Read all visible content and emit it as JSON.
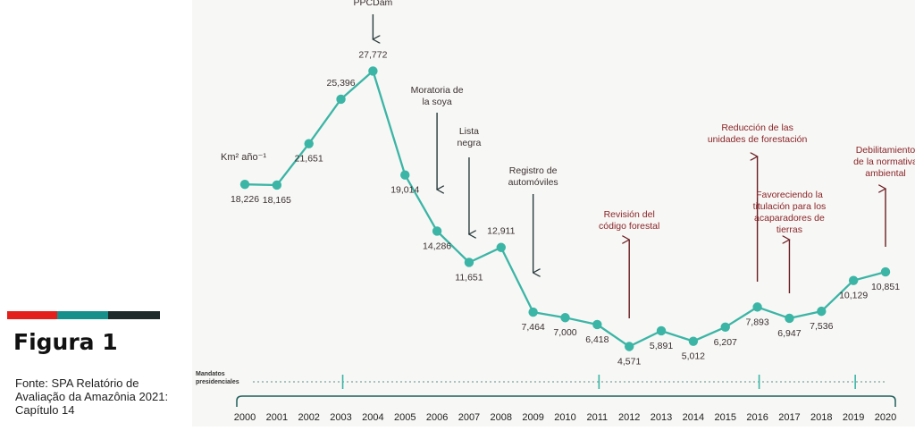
{
  "figure": {
    "title": "Figura 1",
    "source": "Fonte: SPA Relatório de Avaliação da Amazônia 2021: Capítulo 14",
    "stripe_colors": [
      "#e3201b",
      "#17908c",
      "#1f2a2b"
    ]
  },
  "colors": {
    "line": "#3bb5a6",
    "black_arrow": "#2a3a3c",
    "red_arrow": "#6b1e22",
    "red_text": "#8b2428",
    "label_text": "#3a3030",
    "axis": "#1f5f5b"
  },
  "chart_data": {
    "type": "line",
    "unit_label": "Km² año⁻¹",
    "x": [
      "2000",
      "2001",
      "2002",
      "2003",
      "2004",
      "2005",
      "2006",
      "2007",
      "2008",
      "2009",
      "2010",
      "2011",
      "2012",
      "2013",
      "2014",
      "2015",
      "2016",
      "2017",
      "2018",
      "2019",
      "2020"
    ],
    "values": [
      18226,
      18165,
      21651,
      25396,
      27772,
      19014,
      14286,
      11651,
      12911,
      7464,
      7000,
      6418,
      4571,
      5891,
      5012,
      6207,
      7893,
      6947,
      7536,
      10129,
      10851
    ],
    "value_labels": [
      "18,226",
      "18,165",
      "21,651",
      "25,396",
      "27,772",
      "19,014",
      "14,286",
      "11,651",
      "12,911",
      "7,464",
      "7,000",
      "6,418",
      "4,571",
      "5,891",
      "5,012",
      "6,207",
      "7,893",
      "6,947",
      "7,536",
      "10,129",
      "10,851"
    ],
    "grid": false,
    "annotations": [
      {
        "year": "2004",
        "text": [
          "PPCDam"
        ],
        "arrow": "down",
        "color": "black"
      },
      {
        "year": "2006",
        "text": [
          "Moratoria de",
          "la soya"
        ],
        "arrow": "down",
        "color": "black"
      },
      {
        "year": "2007",
        "text": [
          "Lista",
          "negra"
        ],
        "arrow": "down",
        "color": "black"
      },
      {
        "year": "2009",
        "text": [
          "Registro de",
          "automóviles"
        ],
        "arrow": "down",
        "color": "black"
      },
      {
        "year": "2012",
        "text": [
          "Revisión del",
          "código forestal"
        ],
        "arrow": "up",
        "color": "red"
      },
      {
        "year": "2016",
        "text": [
          "Reducción de las",
          "unidades de forestación"
        ],
        "arrow": "up",
        "color": "red"
      },
      {
        "year": "2017",
        "text": [
          "Favoreciendo la",
          "titulación para los",
          "acaparadores de",
          "tierras"
        ],
        "arrow": "up",
        "color": "red"
      },
      {
        "year": "2020",
        "text": [
          "Debilitamiento",
          "de la normativa",
          "ambiental"
        ],
        "arrow": "up",
        "color": "red"
      }
    ],
    "presidential_terms": {
      "label": [
        "Mandatos",
        "presidenciales"
      ],
      "marks": [
        "2003",
        "2011",
        "2016",
        "2019"
      ]
    }
  }
}
